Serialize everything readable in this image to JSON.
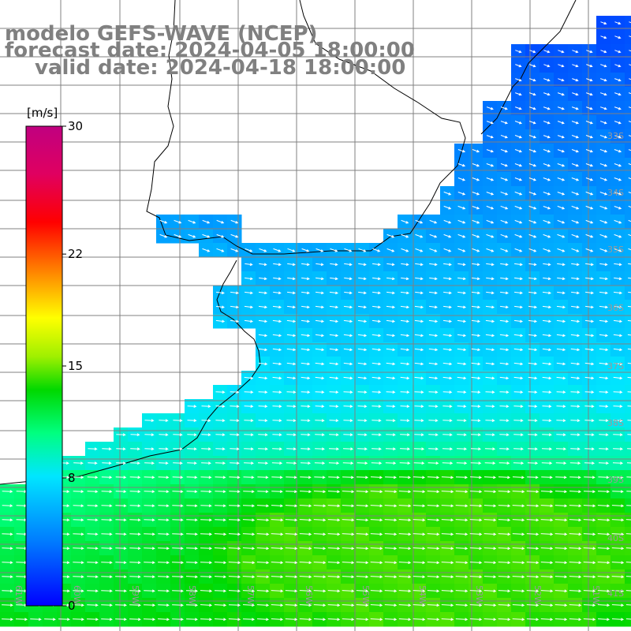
{
  "title": {
    "line1": "modelo GEFS-WAVE (NCEP)",
    "line2": "forecast date: 2024-04-05 18:00:00",
    "line3": "valid date: 2024-04-18 18:00:00"
  },
  "colorbar": {
    "unit": "[m/s]",
    "ticks": [
      {
        "value": 0,
        "label": "0"
      },
      {
        "value": 8,
        "label": "8"
      },
      {
        "value": 15,
        "label": "15"
      },
      {
        "value": 22,
        "label": "22"
      },
      {
        "value": 30,
        "label": "30"
      }
    ],
    "range": [
      0,
      30
    ],
    "palette": [
      "#0000ff",
      "#0078ff",
      "#00e6ff",
      "#00ff80",
      "#00e000",
      "#a0f000",
      "#ffff00",
      "#ff8000",
      "#ff0000",
      "#e00060",
      "#c00080"
    ]
  },
  "map": {
    "lon_range": [
      -62,
      -51
    ],
    "lat_range": [
      -41,
      -30
    ],
    "lat_labels": [
      "33S",
      "34S",
      "35S",
      "36S",
      "37S",
      "38S",
      "39S",
      "40S",
      "41S"
    ],
    "lon_labels": [
      "61W",
      "60W",
      "59W",
      "58W",
      "57W",
      "56W",
      "55W",
      "54W",
      "53W",
      "52W",
      "51W"
    ],
    "wind_field_description_colors": {
      "land": "#ffffff",
      "coast": "#000000",
      "grid": "#808080",
      "arrows": "#ffffff"
    }
  }
}
